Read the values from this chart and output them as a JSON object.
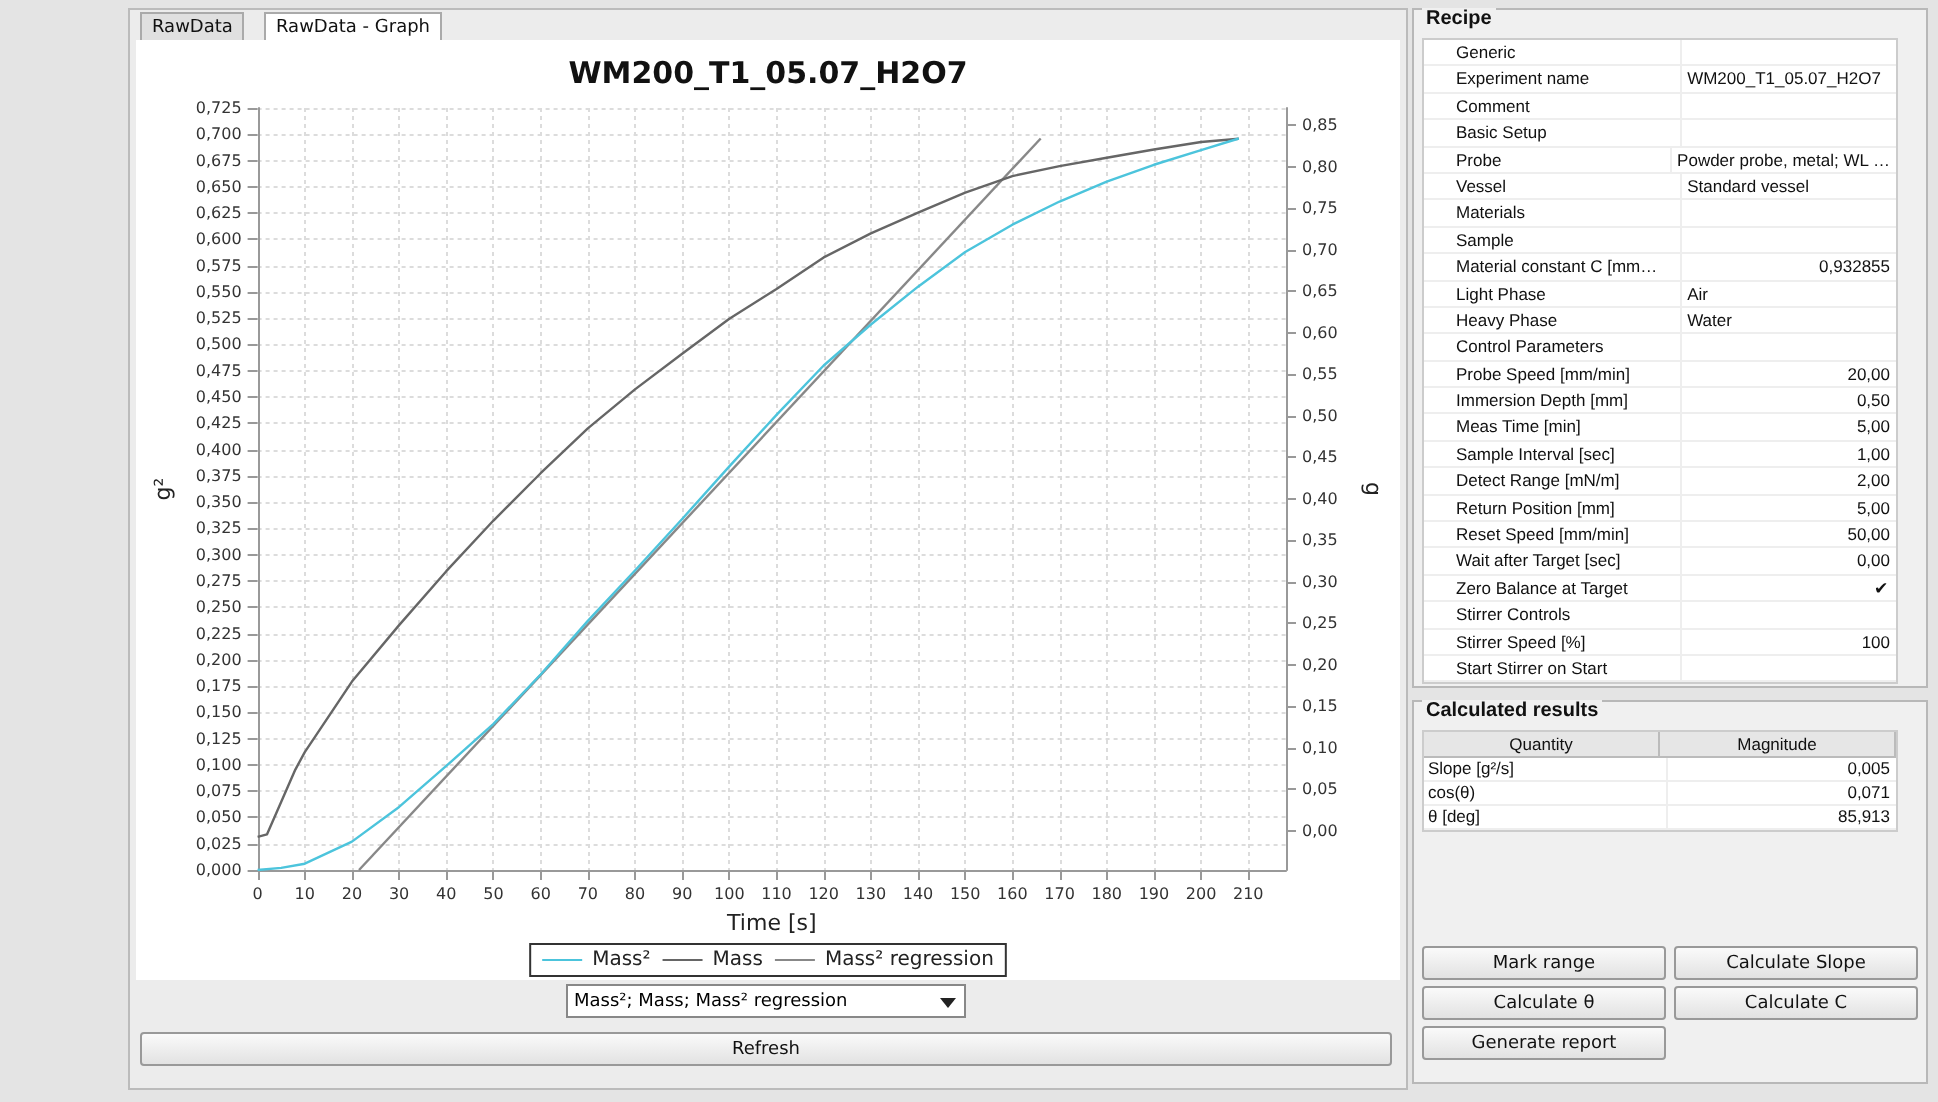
{
  "chart_data": [
    {
      "type": "line",
      "title": "WM200_T1_05.07_H2O7",
      "xlabel": "Time [s]",
      "ylabel": "g²",
      "y2label": "g",
      "xlim": [
        0,
        218
      ],
      "xticks": [
        0,
        10,
        20,
        30,
        40,
        50,
        60,
        70,
        80,
        90,
        100,
        110,
        120,
        130,
        140,
        150,
        160,
        170,
        180,
        190,
        200,
        210
      ],
      "ylim": [
        0,
        0.725
      ],
      "yticks": [
        {
          "value": 0,
          "label": "0,000"
        },
        {
          "value": 0.025,
          "label": "0,025"
        },
        {
          "value": 0.05,
          "label": "0,050"
        },
        {
          "value": 0.075,
          "label": "0,075"
        },
        {
          "value": 0.1,
          "label": "0,100"
        },
        {
          "value": 0.125,
          "label": "0,125"
        },
        {
          "value": 0.15,
          "label": "0,150"
        },
        {
          "value": 0.175,
          "label": "0,175"
        },
        {
          "value": 0.2,
          "label": "0,200"
        },
        {
          "value": 0.225,
          "label": "0,225"
        },
        {
          "value": 0.25,
          "label": "0,250"
        },
        {
          "value": 0.275,
          "label": "0,275"
        },
        {
          "value": 0.3,
          "label": "0,300"
        },
        {
          "value": 0.325,
          "label": "0,325"
        },
        {
          "value": 0.35,
          "label": "0,350"
        },
        {
          "value": 0.375,
          "label": "0,375"
        },
        {
          "value": 0.4,
          "label": "0,400"
        },
        {
          "value": 0.425,
          "label": "0,425"
        },
        {
          "value": 0.45,
          "label": "0,450"
        },
        {
          "value": 0.475,
          "label": "0,475"
        },
        {
          "value": 0.5,
          "label": "0,500"
        },
        {
          "value": 0.525,
          "label": "0,525"
        },
        {
          "value": 0.55,
          "label": "0,550"
        },
        {
          "value": 0.575,
          "label": "0,575"
        },
        {
          "value": 0.6,
          "label": "0,600"
        },
        {
          "value": 0.625,
          "label": "0,625"
        },
        {
          "value": 0.65,
          "label": "0,650"
        },
        {
          "value": 0.675,
          "label": "0,675"
        },
        {
          "value": 0.7,
          "label": "0,700"
        },
        {
          "value": 0.725,
          "label": "0,725"
        }
      ],
      "y2lim": [
        -0.047,
        0.871
      ],
      "y2ticks": [
        {
          "value": 0,
          "label": "0,00"
        },
        {
          "value": 0.05,
          "label": "0,05"
        },
        {
          "value": 0.1,
          "label": "0,10"
        },
        {
          "value": 0.15,
          "label": "0,15"
        },
        {
          "value": 0.2,
          "label": "0,20"
        },
        {
          "value": 0.25,
          "label": "0,25"
        },
        {
          "value": 0.3,
          "label": "0,30"
        },
        {
          "value": 0.35,
          "label": "0,35"
        },
        {
          "value": 0.4,
          "label": "0,40"
        },
        {
          "value": 0.45,
          "label": "0,45"
        },
        {
          "value": 0.5,
          "label": "0,50"
        },
        {
          "value": 0.55,
          "label": "0,55"
        },
        {
          "value": 0.6,
          "label": "0,60"
        },
        {
          "value": 0.65,
          "label": "0,65"
        },
        {
          "value": 0.7,
          "label": "0,70"
        },
        {
          "value": 0.75,
          "label": "0,75"
        },
        {
          "value": 0.8,
          "label": "0,80"
        },
        {
          "value": 0.85,
          "label": "0,85"
        }
      ],
      "grid": true,
      "legend": "bottom",
      "marker": "none",
      "series": [
        {
          "name": "Mass²",
          "color": "#4cc4dc",
          "x": [
            0,
            5,
            10,
            20,
            30,
            40,
            50,
            60,
            70,
            80,
            90,
            100,
            110,
            120,
            130,
            140,
            150,
            160,
            170,
            180,
            190,
            200,
            208
          ],
          "values": [
            0,
            0.002,
            0.006,
            0.027,
            0.06,
            0.099,
            0.139,
            0.186,
            0.237,
            0.285,
            0.334,
            0.384,
            0.433,
            0.48,
            0.519,
            0.555,
            0.588,
            0.614,
            0.636,
            0.655,
            0.671,
            0.685,
            0.696
          ]
        },
        {
          "name": "Mass",
          "color": "#666666",
          "axis": "y2",
          "x": [
            0,
            2,
            8,
            10,
            20,
            30,
            40,
            50,
            60,
            70,
            80,
            90,
            100,
            110,
            120,
            130,
            140,
            150,
            160,
            170,
            180,
            190,
            200,
            208
          ],
          "values": [
            -0.007,
            -0.004,
            0.074,
            0.095,
            0.18,
            0.248,
            0.313,
            0.374,
            0.431,
            0.485,
            0.532,
            0.575,
            0.617,
            0.653,
            0.691,
            0.72,
            0.745,
            0.769,
            0.789,
            0.801,
            0.811,
            0.821,
            0.83,
            0.834
          ]
        },
        {
          "name": "Mass² regression",
          "color": "#888888",
          "x": [
            21.5,
            166
          ],
          "values": [
            0,
            0.696
          ]
        }
      ],
      "annotations": [
        "RawData",
        "RawData - Graph",
        "Mass²; Mass; Mass² regression",
        "Refresh"
      ]
    },
    {
      "type": "other",
      "title": "Recipe",
      "y_categories": [
        "Generic",
        "Experiment name",
        "Comment",
        "Basic Setup",
        "Probe",
        "Vessel",
        "Materials",
        "Sample",
        "Material constant C [mm…",
        "Light Phase",
        "Heavy Phase",
        "Control Parameters",
        "Probe Speed [mm/min]",
        "Immersion Depth [mm]",
        "Meas Time [min]",
        "Sample Interval [sec]",
        "Detect Range [mN/m]",
        "Return Position [mm]",
        "Reset Speed [mm/min]",
        "Wait after Target [sec]",
        "Zero Balance at Target",
        "Stirrer Controls",
        "Stirrer Speed [%]",
        "Start Stirrer on Start"
      ],
      "cell_labels": [
        [
          null
        ],
        [
          "WM200_T1_05.07_H2O7"
        ],
        [
          null
        ],
        [
          null
        ],
        [
          "Powder probe, metal; WL …"
        ],
        [
          "Standard vessel"
        ],
        [
          null
        ],
        [
          null
        ],
        [
          "0,932855"
        ],
        [
          "Air"
        ],
        [
          "Water"
        ],
        [
          null
        ],
        [
          "20,00"
        ],
        [
          "0,50"
        ],
        [
          "5,00"
        ],
        [
          "1,00"
        ],
        [
          "2,00"
        ],
        [
          "5,00"
        ],
        [
          "50,00"
        ],
        [
          "0,00"
        ],
        [
          "✔"
        ],
        [
          null
        ],
        [
          "100"
        ],
        [
          null
        ]
      ]
    },
    {
      "type": "other",
      "title": "Calculated results",
      "categories": [
        "Quantity",
        "Magnitude"
      ],
      "y_categories": [
        "Slope [g²/s]",
        "cos(θ)",
        "θ [deg]"
      ],
      "cell_labels": [
        [
          "0,005"
        ],
        [
          "0,071"
        ],
        [
          "85,913"
        ]
      ],
      "annotations": [
        "Mark range",
        "Calculate Slope",
        "Calculate θ",
        "Calculate C",
        "Generate report"
      ]
    }
  ]
}
